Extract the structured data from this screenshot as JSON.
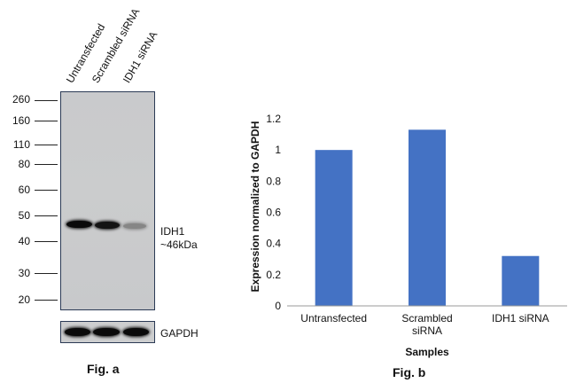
{
  "fig_a": {
    "caption": "Fig. a",
    "lanes": [
      "Untransfected",
      "Scrambled siRNA",
      "IDH1 siRNA"
    ],
    "mw_markers": [
      "260",
      "160",
      "110",
      "80",
      "60",
      "50",
      "40",
      "30",
      "20"
    ],
    "target_label": "IDH1",
    "target_size": "~46kDa",
    "loading_control": "GAPDH",
    "band_intensity": [
      1.0,
      0.95,
      0.35
    ],
    "gapdh_intensity": [
      1.0,
      1.0,
      1.0
    ]
  },
  "fig_b": {
    "caption": "Fig. b"
  },
  "chart_data": {
    "type": "bar",
    "categories": [
      "Untransfected",
      "Scrambled siRNA",
      "IDH1 siRNA"
    ],
    "category_lines": [
      [
        "Untransfected"
      ],
      [
        "Scrambled",
        "siRNA"
      ],
      [
        "IDH1 siRNA"
      ]
    ],
    "values": [
      1.0,
      1.13,
      0.32
    ],
    "ylim": [
      0,
      1.2
    ],
    "yticks": [
      "0",
      "0.2",
      "0.4",
      "0.6",
      "0.8",
      "1",
      "1.2"
    ],
    "ytick_values": [
      0,
      0.2,
      0.4,
      0.6,
      0.8,
      1.0,
      1.2
    ],
    "xlabel": "Samples",
    "ylabel": "Expression normalized to GAPDH",
    "bar_color": "#4472C4",
    "grid": false,
    "legend": "none"
  }
}
